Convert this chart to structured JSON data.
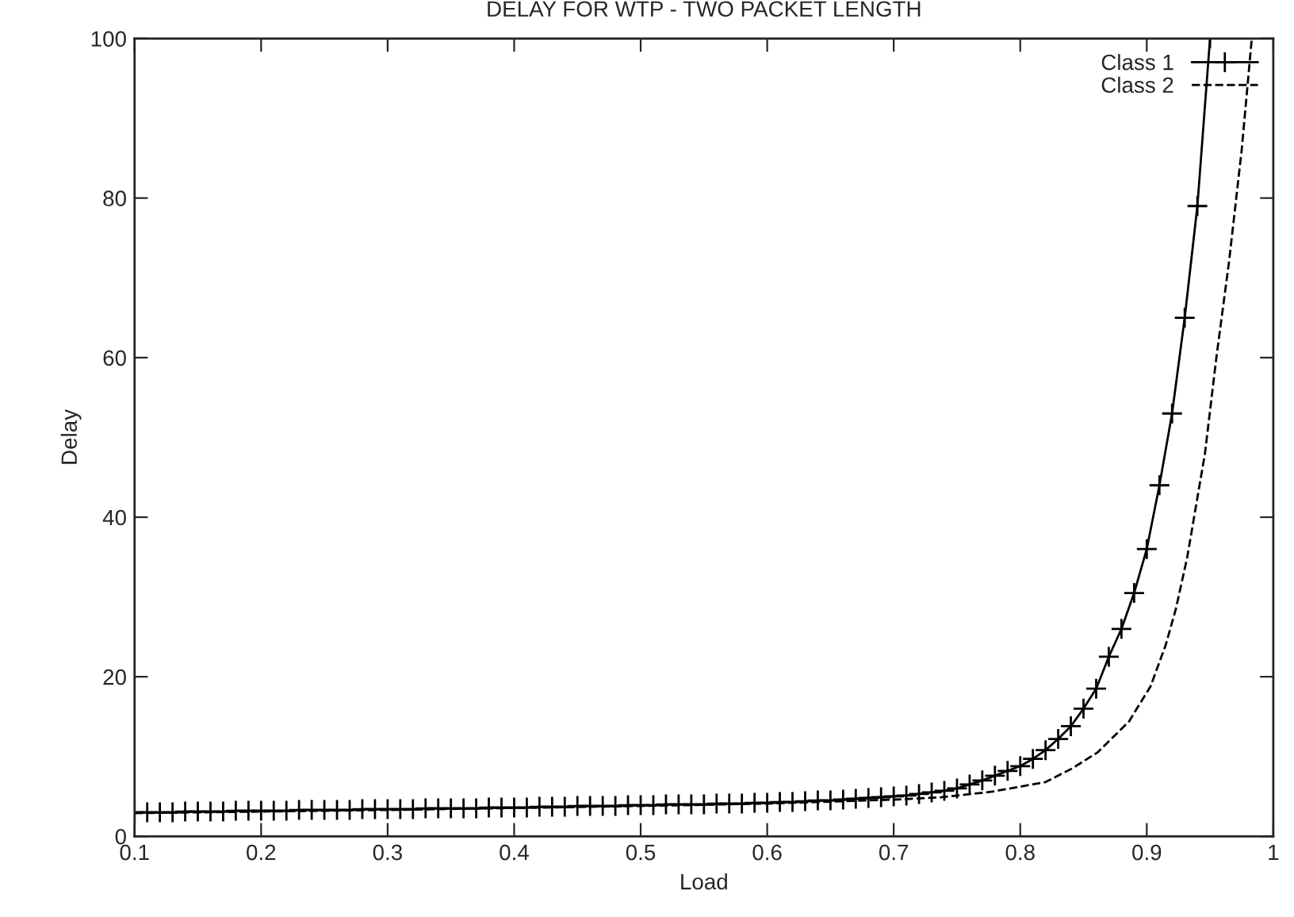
{
  "chart_data": {
    "type": "line",
    "title": "DELAY FOR WTP - TWO PACKET LENGTH",
    "xlabel": "Load",
    "ylabel": "Delay",
    "xlim": [
      0.1,
      1
    ],
    "xticks": [
      0.1,
      0.2,
      0.3,
      0.4,
      0.5,
      0.6,
      0.7,
      0.8,
      0.9,
      1
    ],
    "ylim": [
      0,
      100
    ],
    "yticks": [
      0,
      20,
      40,
      60,
      80,
      100
    ],
    "grid": false,
    "legend": "top right",
    "series": [
      {
        "name": "Class 1",
        "color": "#000000",
        "marker": "cross",
        "line_style": "solid",
        "x": [
          0.1,
          0.11,
          0.12,
          0.13,
          0.14,
          0.15,
          0.16,
          0.17,
          0.18,
          0.19,
          0.2,
          0.21,
          0.22,
          0.23,
          0.24,
          0.25,
          0.26,
          0.27,
          0.28,
          0.29,
          0.3,
          0.31,
          0.32,
          0.33,
          0.34,
          0.35,
          0.36,
          0.37,
          0.38,
          0.39,
          0.4,
          0.41,
          0.42,
          0.43,
          0.44,
          0.45,
          0.46,
          0.47,
          0.48,
          0.49,
          0.5,
          0.51,
          0.52,
          0.53,
          0.54,
          0.55,
          0.56,
          0.57,
          0.58,
          0.59,
          0.6,
          0.61,
          0.62,
          0.63,
          0.64,
          0.65,
          0.66,
          0.67,
          0.68,
          0.69,
          0.7,
          0.71,
          0.72,
          0.73,
          0.74,
          0.75,
          0.76,
          0.77,
          0.78,
          0.79,
          0.8,
          0.81,
          0.82,
          0.83,
          0.84,
          0.85,
          0.86,
          0.87,
          0.88,
          0.89,
          0.9,
          0.91,
          0.92,
          0.93,
          0.94,
          0.95
        ],
        "values": [
          3.0,
          3.0,
          3.0,
          3.0,
          3.1,
          3.1,
          3.1,
          3.1,
          3.2,
          3.2,
          3.2,
          3.2,
          3.2,
          3.3,
          3.3,
          3.3,
          3.3,
          3.3,
          3.4,
          3.4,
          3.4,
          3.4,
          3.4,
          3.5,
          3.5,
          3.5,
          3.5,
          3.5,
          3.6,
          3.6,
          3.6,
          3.6,
          3.7,
          3.7,
          3.7,
          3.8,
          3.8,
          3.8,
          3.8,
          3.9,
          3.9,
          3.9,
          4.0,
          4.0,
          4.0,
          4.0,
          4.1,
          4.1,
          4.1,
          4.2,
          4.2,
          4.3,
          4.3,
          4.4,
          4.5,
          4.5,
          4.6,
          4.7,
          4.8,
          4.9,
          5.0,
          5.1,
          5.3,
          5.5,
          5.7,
          6.0,
          6.5,
          7.0,
          7.6,
          8.2,
          8.8,
          9.7,
          10.8,
          12.2,
          13.8,
          16.0,
          18.5,
          22.5,
          26.0,
          30.5,
          36.0,
          44.0,
          53.0,
          65.0,
          79.0,
          100.0
        ]
      },
      {
        "name": "Class 2",
        "color": "#000000",
        "marker": "none",
        "line_style": "dashed",
        "x": [
          0.1,
          0.3,
          0.5,
          0.6,
          0.7,
          0.738,
          0.778,
          0.82,
          0.841,
          0.861,
          0.886,
          0.903,
          0.915,
          0.923,
          0.932,
          0.939,
          0.946,
          0.955,
          0.965,
          0.975,
          0.983
        ],
        "values": [
          2.9,
          3.3,
          3.8,
          4.1,
          4.6,
          4.9,
          5.6,
          6.8,
          8.5,
          10.5,
          14.4,
          18.8,
          24.0,
          28.5,
          35.0,
          41.5,
          48.0,
          60.0,
          72.0,
          86.0,
          100.0
        ]
      }
    ]
  }
}
